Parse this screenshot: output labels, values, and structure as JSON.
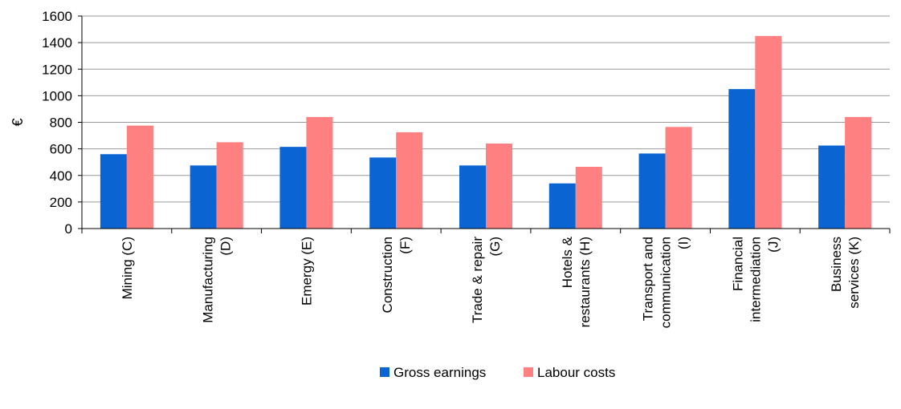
{
  "chart_data": {
    "type": "bar",
    "title": "",
    "xlabel": "",
    "ylabel": "€",
    "ylim": [
      0,
      1600
    ],
    "yticks": [
      0,
      200,
      400,
      600,
      800,
      1000,
      1200,
      1400,
      1600
    ],
    "grid": true,
    "legend_position": "bottom",
    "categories": [
      [
        "Mining (C)"
      ],
      [
        "Manufacturing",
        "(D)"
      ],
      [
        "Emergy (E)"
      ],
      [
        "Construction",
        "(F)"
      ],
      [
        "Trade & repair",
        "(G)"
      ],
      [
        "Hotels &",
        "restaurants (H)"
      ],
      [
        "Transport and",
        "communication",
        "(I)"
      ],
      [
        "Financial",
        "intermediation",
        "(J)"
      ],
      [
        "Business",
        "services (K)"
      ]
    ],
    "series": [
      {
        "name": "Gross earnings",
        "color": "#0a64d2",
        "values": [
          560,
          475,
          615,
          535,
          475,
          340,
          565,
          1050,
          625
        ]
      },
      {
        "name": "Labour costs",
        "color": "#ff8080",
        "values": [
          775,
          650,
          840,
          725,
          640,
          465,
          765,
          1450,
          840
        ]
      }
    ]
  }
}
